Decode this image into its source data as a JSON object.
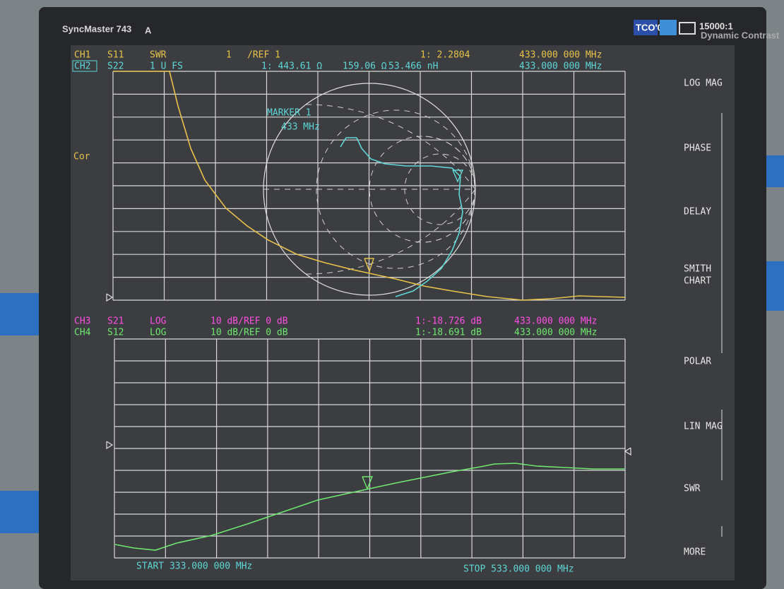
{
  "monitor": {
    "brand": "SyncMaster 743",
    "model_suffix": "A",
    "badge": "TCO'03",
    "contrast": "15000:1",
    "contrast_caption": "Dynamic Contrast"
  },
  "upper_header": {
    "ch1": {
      "channel": "CH1",
      "param": "S11",
      "format": "SWR",
      "scale": "1",
      "ref": "/REF 1",
      "marker": "1: 2.2804",
      "freq": "433.000 000 MHz"
    },
    "ch2": {
      "channel": "CH2",
      "param": "S22",
      "format": "1 U FS",
      "marker": "1: 443.61 Ω",
      "reactance": "159.06 Ω",
      "inductance": "53.466 nH",
      "freq": "433.000 000 MHz"
    }
  },
  "upper_plot": {
    "marker_title": "MARKER 1",
    "marker_freq": "433 MHz",
    "cor": "Cor"
  },
  "lower_header": {
    "ch3": {
      "channel": "CH3",
      "param": "S21",
      "format": "LOG",
      "scale": "10 dB/REF 0 dB",
      "marker": "1:-18.726 dB",
      "freq": "433.000 000 MHz"
    },
    "ch4": {
      "channel": "CH4",
      "param": "S12",
      "format": "LOG",
      "scale": "10 dB/REF 0 dB",
      "marker": "1:-18.691 dB",
      "freq": "433.000 000 MHz"
    }
  },
  "footer": {
    "start": "START 333.000 000 MHz",
    "stop": "STOP 533.000 000 MHz"
  },
  "softkeys": [
    "LOG MAG",
    "PHASE",
    "DELAY",
    "SMITH",
    "CHART",
    "POLAR",
    "LIN MAG",
    "SWR",
    "MORE"
  ]
}
